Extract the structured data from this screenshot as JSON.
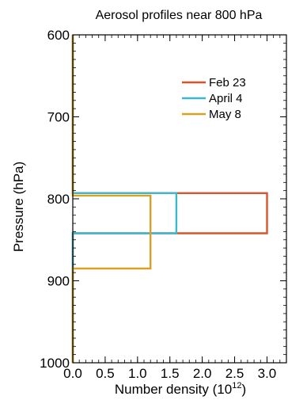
{
  "chart_data": {
    "type": "line",
    "title": "Aerosol profiles near 800 hPa",
    "xlabel": "Number density (10",
    "xlabel_exponent": "12",
    "xlabel_suffix": ")",
    "ylabel": "Pressure (hPa)",
    "xlim": [
      0.0,
      3.3
    ],
    "ylim": [
      1000,
      600
    ],
    "y_inverted": true,
    "x_ticks": [
      0.0,
      0.5,
      1.0,
      1.5,
      2.0,
      2.5,
      3.0
    ],
    "x_tick_labels": [
      "0.0",
      "0.5",
      "1.0",
      "1.5",
      "2.0",
      "2.5",
      "3.0"
    ],
    "y_ticks": [
      600,
      700,
      800,
      900,
      1000
    ],
    "y_tick_labels": [
      "600",
      "700",
      "800",
      "900",
      "1000"
    ],
    "grid": false,
    "legend_position": "top-right",
    "series": [
      {
        "name": "Feb 23",
        "color": "#d9542b",
        "x": [
          0.0,
          0.0,
          3.0,
          3.0,
          0.0,
          0.0
        ],
        "y": [
          1000,
          842,
          842,
          793,
          793,
          600
        ]
      },
      {
        "name": "April 4",
        "color": "#3bb8cc",
        "x": [
          0.0,
          0.0,
          1.6,
          1.6,
          0.0,
          0.0
        ],
        "y": [
          1000,
          842,
          842,
          793,
          793,
          600
        ]
      },
      {
        "name": "May 8",
        "color": "#d9a124",
        "x": [
          0.0,
          0.0,
          1.2,
          1.2,
          0.0,
          0.0
        ],
        "y": [
          1000,
          885,
          885,
          796,
          796,
          600
        ]
      }
    ]
  }
}
